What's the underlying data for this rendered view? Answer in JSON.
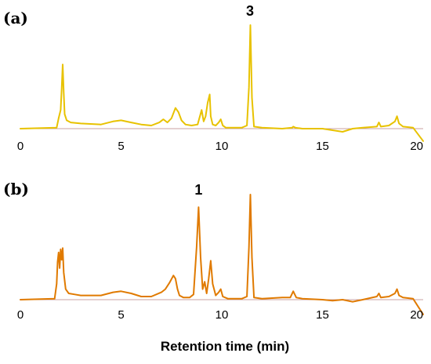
{
  "chart_data": [
    {
      "type": "line",
      "panel_label": "(a)",
      "xlabel": "",
      "ylabel": "",
      "xlim": [
        0,
        20
      ],
      "x_ticks": [
        0,
        5,
        10,
        15,
        20
      ],
      "grid": false,
      "line_color": "#e8c200",
      "annotations": [
        {
          "text": "3",
          "x": 11.4
        }
      ],
      "series": [
        {
          "x": [
            0,
            1.8,
            1.9,
            2.0,
            2.05,
            2.1,
            2.15,
            2.2,
            2.3,
            2.5,
            3.0,
            4.0,
            4.6,
            5.0,
            5.5,
            6.0,
            6.5,
            6.9,
            7.1,
            7.3,
            7.5,
            7.7,
            7.85,
            8.0,
            8.2,
            8.5,
            8.8,
            9.0,
            9.1,
            9.2,
            9.3,
            9.4,
            9.45,
            9.55,
            9.7,
            9.85,
            9.95,
            10.05,
            10.2,
            10.5,
            11.0,
            11.25,
            11.35,
            11.42,
            11.5,
            11.6,
            12.0,
            13.0,
            13.5,
            13.55,
            13.65,
            14.0,
            15.0,
            16.0,
            16.5,
            17.0,
            17.7,
            17.8,
            17.9,
            18.3,
            18.6,
            18.7,
            18.8,
            19.0,
            19.5,
            20.0
          ],
          "y": [
            0.0,
            0.01,
            0.1,
            0.18,
            0.38,
            0.62,
            0.35,
            0.14,
            0.08,
            0.06,
            0.05,
            0.04,
            0.07,
            0.08,
            0.06,
            0.04,
            0.03,
            0.06,
            0.09,
            0.06,
            0.1,
            0.2,
            0.16,
            0.08,
            0.04,
            0.03,
            0.04,
            0.18,
            0.07,
            0.12,
            0.25,
            0.33,
            0.12,
            0.04,
            0.03,
            0.06,
            0.09,
            0.03,
            0.01,
            0.01,
            0.01,
            0.03,
            0.4,
            1.0,
            0.3,
            0.02,
            0.01,
            0.0,
            0.01,
            0.02,
            0.01,
            0.0,
            0.0,
            -0.03,
            0.0,
            0.01,
            0.02,
            0.06,
            0.02,
            0.03,
            0.07,
            0.12,
            0.05,
            0.02,
            0.01,
            -0.12
          ]
        }
      ]
    },
    {
      "type": "line",
      "panel_label": "(b)",
      "xlabel": "Retention time (min)",
      "ylabel": "",
      "xlim": [
        0,
        20
      ],
      "x_ticks": [
        0,
        5,
        10,
        15,
        20
      ],
      "grid": false,
      "line_color": "#e07a00",
      "annotations": [
        {
          "text": "1",
          "x": 8.85
        }
      ],
      "series": [
        {
          "x": [
            0,
            1.7,
            1.8,
            1.85,
            1.9,
            1.95,
            2.0,
            2.05,
            2.1,
            2.15,
            2.25,
            2.4,
            2.7,
            3.0,
            4.0,
            4.6,
            5.0,
            5.5,
            6.0,
            6.5,
            7.0,
            7.2,
            7.4,
            7.6,
            7.7,
            7.8,
            7.9,
            8.1,
            8.4,
            8.6,
            8.75,
            8.85,
            8.95,
            9.05,
            9.15,
            9.25,
            9.35,
            9.45,
            9.55,
            9.7,
            9.85,
            9.95,
            10.05,
            10.3,
            11.0,
            11.25,
            11.35,
            11.42,
            11.5,
            11.6,
            12.0,
            13.0,
            13.4,
            13.55,
            13.7,
            14.0,
            15.0,
            15.5,
            16.0,
            16.5,
            17.0,
            17.7,
            17.8,
            17.9,
            18.3,
            18.6,
            18.7,
            18.8,
            19.0,
            19.5,
            20.0
          ],
          "y": [
            0.0,
            0.01,
            0.15,
            0.36,
            0.45,
            0.3,
            0.48,
            0.38,
            0.49,
            0.26,
            0.1,
            0.06,
            0.05,
            0.04,
            0.04,
            0.07,
            0.08,
            0.06,
            0.03,
            0.03,
            0.07,
            0.1,
            0.16,
            0.23,
            0.2,
            0.1,
            0.04,
            0.02,
            0.02,
            0.05,
            0.5,
            0.88,
            0.4,
            0.1,
            0.17,
            0.06,
            0.2,
            0.37,
            0.15,
            0.04,
            0.07,
            0.1,
            0.03,
            0.01,
            0.01,
            0.03,
            0.5,
            1.0,
            0.4,
            0.02,
            0.01,
            0.02,
            0.02,
            0.08,
            0.02,
            0.01,
            0.0,
            -0.01,
            0.0,
            -0.02,
            0.0,
            0.03,
            0.06,
            0.02,
            0.03,
            0.06,
            0.1,
            0.04,
            0.02,
            0.01,
            -0.14
          ]
        }
      ]
    }
  ]
}
